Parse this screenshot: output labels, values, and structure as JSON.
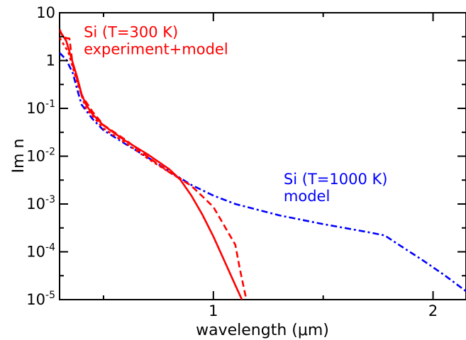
{
  "chart_data": {
    "type": "line",
    "xlabel": "wavelength (μm)",
    "ylabel": "Im n",
    "xlim": [
      0.3,
      2.15
    ],
    "ylim": [
      1e-05,
      10
    ],
    "yscale": "log",
    "x_ticks": [
      {
        "value": 1,
        "label": "1"
      },
      {
        "value": 2,
        "label": "2"
      }
    ],
    "y_ticks": [
      {
        "value": 10,
        "base": "10",
        "exp": ""
      },
      {
        "value": 1,
        "base": "1",
        "exp": ""
      },
      {
        "value": 0.1,
        "base": "10",
        "exp": "-1"
      },
      {
        "value": 0.01,
        "base": "10",
        "exp": "-2"
      },
      {
        "value": 0.001,
        "base": "10",
        "exp": "-3"
      },
      {
        "value": 0.0001,
        "base": "10",
        "exp": "-4"
      },
      {
        "value": 1e-05,
        "base": "10",
        "exp": "-5"
      }
    ],
    "grid": false,
    "annotations": [
      {
        "lines": [
          "Si (T=300 K)",
          "experiment+model"
        ],
        "color": "#ff0000",
        "at": [
          0.41,
          3.1
        ]
      },
      {
        "lines": [
          "Si (T=1000 K)",
          "model"
        ],
        "color": "#0000ff",
        "at": [
          1.32,
          0.0026
        ]
      }
    ],
    "series": [
      {
        "color": "#0000ff",
        "dash": "9,4,3,4",
        "points": [
          [
            0.3,
            1.45
          ],
          [
            0.33,
            1.05
          ],
          [
            0.36,
            0.55
          ],
          [
            0.38,
            0.25
          ],
          [
            0.4,
            0.12
          ],
          [
            0.45,
            0.06
          ],
          [
            0.5,
            0.035
          ],
          [
            0.6,
            0.018
          ],
          [
            0.7,
            0.0095
          ],
          [
            0.8,
            0.0048
          ],
          [
            0.9,
            0.0025
          ],
          [
            1.0,
            0.0015
          ],
          [
            1.1,
            0.001
          ],
          [
            1.3,
            0.00058
          ],
          [
            1.5,
            0.00038
          ],
          [
            1.7,
            0.00026
          ],
          [
            1.78,
            0.00022
          ],
          [
            1.85,
            0.000135
          ],
          [
            1.95,
            6.8e-05
          ],
          [
            2.05,
            3.3e-05
          ],
          [
            2.15,
            1.5e-05
          ]
        ]
      },
      {
        "color": "#ff0000",
        "dash": "",
        "points": [
          [
            0.3,
            4.2
          ],
          [
            0.33,
            2.6
          ],
          [
            0.36,
            0.9
          ],
          [
            0.38,
            0.45
          ],
          [
            0.4,
            0.2
          ],
          [
            0.42,
            0.12
          ],
          [
            0.45,
            0.075
          ],
          [
            0.5,
            0.044
          ],
          [
            0.6,
            0.021
          ],
          [
            0.7,
            0.011
          ],
          [
            0.8,
            0.0053
          ],
          [
            0.85,
            0.0032
          ],
          [
            0.9,
            0.0015
          ],
          [
            0.95,
            0.0006
          ],
          [
            1.0,
            0.00021
          ],
          [
            1.05,
            6.5e-05
          ],
          [
            1.1,
            2e-05
          ],
          [
            1.13,
            1e-05
          ]
        ]
      },
      {
        "color": "#ff0000",
        "dash": "9,5",
        "points": [
          [
            0.3,
            4.5
          ],
          [
            0.31,
            3.5
          ],
          [
            0.33,
            2.95
          ],
          [
            0.345,
            2.9
          ],
          [
            0.36,
            0.8
          ],
          [
            0.38,
            0.4
          ],
          [
            0.4,
            0.19
          ],
          [
            0.45,
            0.085
          ],
          [
            0.5,
            0.045
          ],
          [
            0.6,
            0.022
          ],
          [
            0.7,
            0.0098
          ],
          [
            0.8,
            0.0046
          ],
          [
            0.9,
            0.0024
          ],
          [
            1.0,
            0.00087
          ],
          [
            1.1,
            0.00014
          ],
          [
            1.12,
            4.5e-05
          ],
          [
            1.15,
            1e-05
          ]
        ]
      },
      {
        "color": "#ff0000",
        "dash": "4,4",
        "points": [
          [
            0.3,
            3.0
          ],
          [
            0.34,
            1.5
          ],
          [
            0.38,
            0.35
          ],
          [
            0.42,
            0.1
          ],
          [
            0.5,
            0.038
          ],
          [
            0.6,
            0.019
          ],
          [
            0.7,
            0.009
          ],
          [
            0.8,
            0.0046
          ],
          [
            0.86,
            0.0032
          ]
        ]
      }
    ]
  }
}
